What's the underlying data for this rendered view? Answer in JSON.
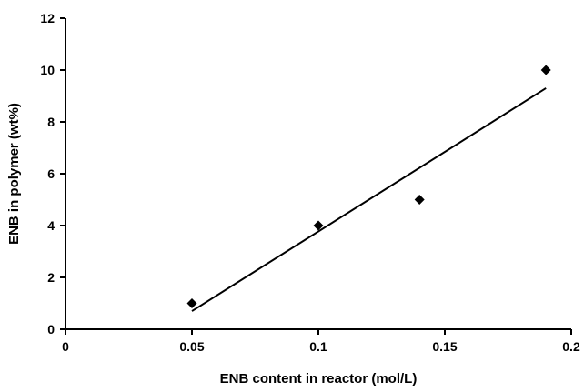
{
  "chart_data": {
    "type": "scatter",
    "title": "",
    "xlabel": "ENB content in reactor (mol/L)",
    "ylabel": "ENB in polymer (wt%)",
    "xlim": [
      0,
      0.2
    ],
    "ylim": [
      0,
      12
    ],
    "xticks": [
      0,
      0.05,
      0.1,
      0.15,
      0.2
    ],
    "yticks": [
      0,
      2,
      4,
      6,
      8,
      10,
      12
    ],
    "xtick_labels": [
      "0",
      "0.05",
      "0.1",
      "0.15",
      "0.2"
    ],
    "ytick_labels": [
      "0",
      "2",
      "4",
      "6",
      "8",
      "10",
      "12"
    ],
    "grid": false,
    "legend": "none",
    "marker": "diamond",
    "color": "#000000",
    "series": [
      {
        "x": [
          0.05,
          0.1,
          0.14,
          0.19
        ],
        "y": [
          1,
          4,
          5,
          10
        ]
      }
    ],
    "trendline": {
      "type": "linear",
      "x": [
        0.05,
        0.19
      ],
      "y": [
        0.7,
        9.3
      ]
    }
  }
}
